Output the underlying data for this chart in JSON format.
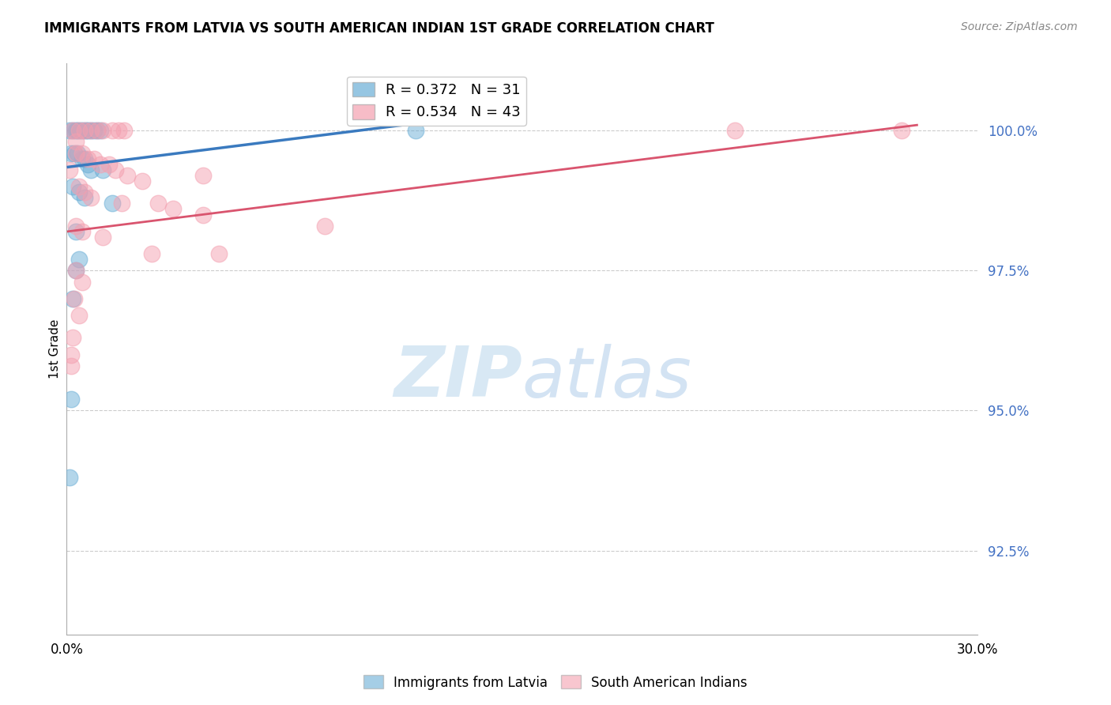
{
  "title": "IMMIGRANTS FROM LATVIA VS SOUTH AMERICAN INDIAN 1ST GRADE CORRELATION CHART",
  "source": "Source: ZipAtlas.com",
  "ylabel": "1st Grade",
  "yticks": [
    100.0,
    97.5,
    95.0,
    92.5
  ],
  "ytick_labels": [
    "100.0%",
    "97.5%",
    "95.0%",
    "92.5%"
  ],
  "xmin": 0.0,
  "xmax": 30.0,
  "ymin": 91.0,
  "ymax": 101.2,
  "blue_R": 0.372,
  "blue_N": 31,
  "pink_R": 0.534,
  "pink_N": 43,
  "blue_color": "#6aaed6",
  "pink_color": "#f4a0b0",
  "blue_line_color": "#3a7abf",
  "pink_line_color": "#d9546e",
  "blue_scatter": [
    [
      0.1,
      100.0
    ],
    [
      0.2,
      100.0
    ],
    [
      0.3,
      100.0
    ],
    [
      0.35,
      100.0
    ],
    [
      0.45,
      100.0
    ],
    [
      0.55,
      100.0
    ],
    [
      0.65,
      100.0
    ],
    [
      0.7,
      100.0
    ],
    [
      0.8,
      100.0
    ],
    [
      0.9,
      100.0
    ],
    [
      1.0,
      100.0
    ],
    [
      1.1,
      100.0
    ],
    [
      0.15,
      99.6
    ],
    [
      0.25,
      99.6
    ],
    [
      0.35,
      99.6
    ],
    [
      0.5,
      99.5
    ],
    [
      0.6,
      99.5
    ],
    [
      0.7,
      99.4
    ],
    [
      0.8,
      99.3
    ],
    [
      1.2,
      99.3
    ],
    [
      0.2,
      99.0
    ],
    [
      0.4,
      98.9
    ],
    [
      0.6,
      98.8
    ],
    [
      1.5,
      98.7
    ],
    [
      0.3,
      98.2
    ],
    [
      0.4,
      97.7
    ],
    [
      0.3,
      97.5
    ],
    [
      0.2,
      97.0
    ],
    [
      0.15,
      95.2
    ],
    [
      0.1,
      93.8
    ],
    [
      11.5,
      100.0
    ]
  ],
  "pink_scatter": [
    [
      0.2,
      100.0
    ],
    [
      0.4,
      100.0
    ],
    [
      0.6,
      100.0
    ],
    [
      0.8,
      100.0
    ],
    [
      1.0,
      100.0
    ],
    [
      1.2,
      100.0
    ],
    [
      1.5,
      100.0
    ],
    [
      1.7,
      100.0
    ],
    [
      1.9,
      100.0
    ],
    [
      22.0,
      100.0
    ],
    [
      27.5,
      100.0
    ],
    [
      0.3,
      99.6
    ],
    [
      0.5,
      99.6
    ],
    [
      0.7,
      99.5
    ],
    [
      0.9,
      99.5
    ],
    [
      1.1,
      99.4
    ],
    [
      1.4,
      99.4
    ],
    [
      1.6,
      99.3
    ],
    [
      2.0,
      99.2
    ],
    [
      2.5,
      99.1
    ],
    [
      0.4,
      99.0
    ],
    [
      0.6,
      98.9
    ],
    [
      0.8,
      98.8
    ],
    [
      1.8,
      98.7
    ],
    [
      3.0,
      98.7
    ],
    [
      3.5,
      98.6
    ],
    [
      4.5,
      98.5
    ],
    [
      0.3,
      98.3
    ],
    [
      0.5,
      98.2
    ],
    [
      1.2,
      98.1
    ],
    [
      2.8,
      97.8
    ],
    [
      5.0,
      97.8
    ],
    [
      0.3,
      97.5
    ],
    [
      0.5,
      97.3
    ],
    [
      0.25,
      97.0
    ],
    [
      0.4,
      96.7
    ],
    [
      0.2,
      96.3
    ],
    [
      0.15,
      96.0
    ],
    [
      0.15,
      95.8
    ],
    [
      0.1,
      99.3
    ],
    [
      4.5,
      99.2
    ],
    [
      0.3,
      99.8
    ],
    [
      8.5,
      98.3
    ]
  ],
  "watermark_zip": "ZIP",
  "watermark_atlas": "atlas",
  "blue_line_x": [
    0.05,
    11.8
  ],
  "blue_line_y": [
    99.35,
    100.15
  ],
  "pink_line_x": [
    0.05,
    28.0
  ],
  "pink_line_y": [
    98.2,
    100.1
  ]
}
